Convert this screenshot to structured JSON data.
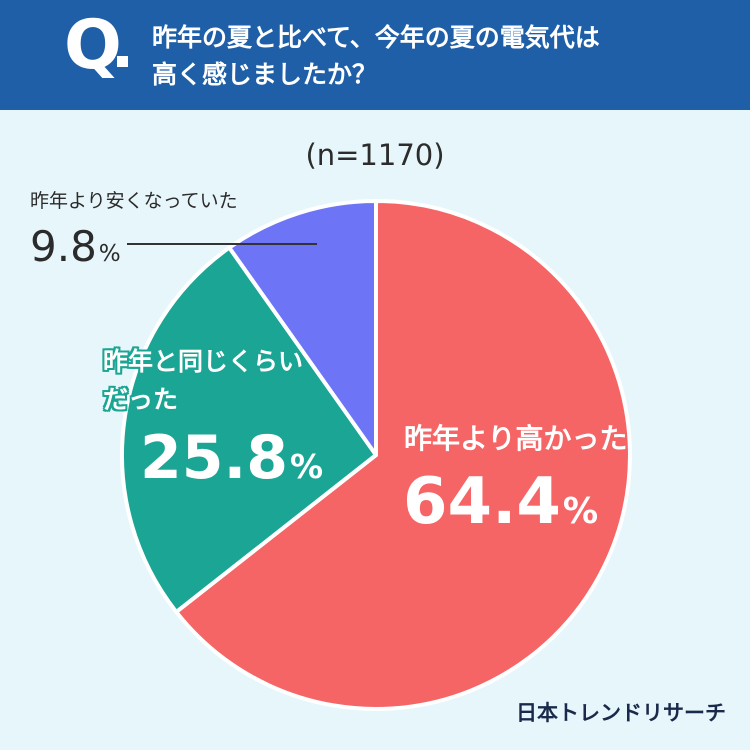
{
  "header": {
    "q_mark": "Q",
    "question_line1": "昨年の夏と比べて、今年の夏の電気代は",
    "question_line2": "高く感じましたか？"
  },
  "sample_size": "(n=1170)",
  "brand": "日本トレンドリサーチ",
  "chart_data": {
    "type": "pie",
    "categories": [
      "昨年より高かった",
      "昨年と同じくらいだった",
      "昨年より安くなっていた"
    ],
    "values": [
      64.4,
      25.8,
      9.8
    ],
    "unit": "%",
    "colors": [
      "#f56566",
      "#1aa594",
      "#6d74f5"
    ],
    "labels": {
      "higher_name": "昨年より高かった",
      "higher_value": "64.4",
      "same_name_line1": "昨年と同じくらい",
      "same_name_line2": "だった",
      "same_value": "25.8",
      "lower_name": "昨年より安くなっていた",
      "lower_value": "9.8",
      "percent_sign": "%"
    }
  }
}
